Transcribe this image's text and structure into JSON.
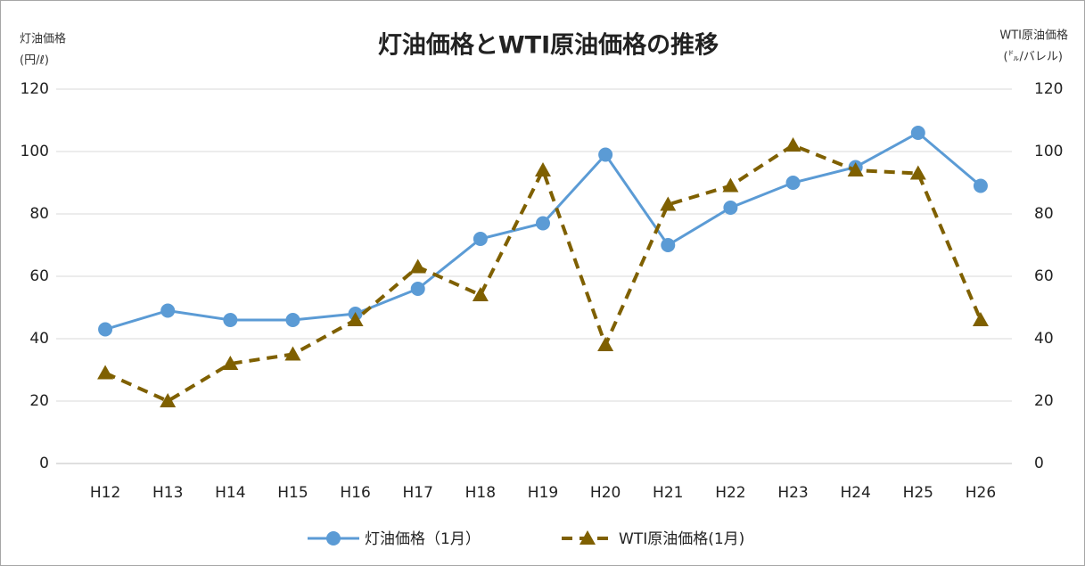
{
  "chart_data": {
    "type": "line",
    "title": "灯油価格とWTI原油価格の推移",
    "ylabel": [
      "灯油価格",
      "(円/ℓ)"
    ],
    "y2label": [
      "WTI原油価格",
      "(㌦/バレル)"
    ],
    "categories": [
      "H12",
      "H13",
      "H14",
      "H15",
      "H16",
      "H17",
      "H18",
      "H19",
      "H20",
      "H21",
      "H22",
      "H23",
      "H24",
      "H25",
      "H26"
    ],
    "series": [
      {
        "name": "灯油価格（1月）",
        "color": "#5b9bd5",
        "marker": "circle",
        "dashed": false,
        "axis": "y",
        "values": [
          43,
          49,
          46,
          46,
          48,
          56,
          72,
          77,
          99,
          70,
          82,
          90,
          95,
          106,
          89
        ]
      },
      {
        "name": "WTI原油価格(1月)",
        "color": "#7f6000",
        "marker": "triangle",
        "dashed": true,
        "axis": "y2",
        "values": [
          29,
          20,
          32,
          35,
          46,
          63,
          54,
          94,
          38,
          83,
          89,
          102,
          94,
          93,
          46
        ]
      }
    ],
    "ylim": [
      0,
      120
    ],
    "yticks": [
      0,
      20,
      40,
      60,
      80,
      100,
      120
    ],
    "y2lim": [
      0,
      120
    ],
    "y2ticks": [
      0,
      20,
      40,
      60,
      80,
      100,
      120
    ],
    "grid": true,
    "legend": "bottom"
  }
}
